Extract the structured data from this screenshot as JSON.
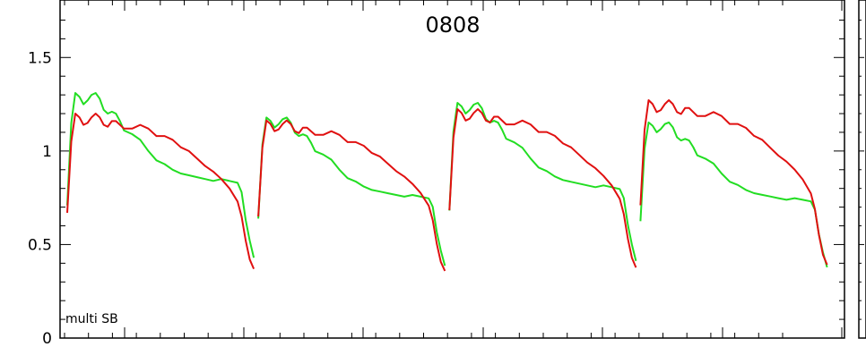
{
  "chart_data": {
    "type": "line",
    "title": "0808",
    "annotation": "multi SB",
    "xlim": [
      0,
      100
    ],
    "ylim": [
      0,
      1.75
    ],
    "y_ticks": [
      0,
      0.5,
      1,
      1.5
    ],
    "y_tick_labels": [
      "0",
      "0.5",
      "1",
      "1.5"
    ],
    "grid": false,
    "series": [
      {
        "color": "#e01010",
        "segments": [
          [
            [
              0,
              0.67
            ],
            [
              1,
              1.05
            ],
            [
              2,
              1.2
            ],
            [
              3,
              1.18
            ],
            [
              4,
              1.14
            ],
            [
              5,
              1.15
            ],
            [
              6,
              1.18
            ],
            [
              7,
              1.2
            ],
            [
              8,
              1.18
            ],
            [
              9,
              1.14
            ],
            [
              10,
              1.13
            ],
            [
              11,
              1.16
            ],
            [
              12,
              1.16
            ],
            [
              14,
              1.12
            ],
            [
              16,
              1.12
            ],
            [
              18,
              1.14
            ],
            [
              20,
              1.12
            ],
            [
              22,
              1.08
            ],
            [
              24,
              1.08
            ],
            [
              26,
              1.06
            ],
            [
              28,
              1.02
            ],
            [
              30,
              1.0
            ],
            [
              32,
              0.96
            ],
            [
              34,
              0.92
            ],
            [
              36,
              0.89
            ],
            [
              38,
              0.85
            ],
            [
              40,
              0.8
            ],
            [
              42,
              0.73
            ],
            [
              43,
              0.65
            ],
            [
              44,
              0.52
            ],
            [
              45,
              0.42
            ],
            [
              46,
              0.37
            ]
          ],
          [
            [
              47,
              0.58
            ],
            [
              48,
              0.9
            ],
            [
              49,
              1.08
            ],
            [
              50,
              1.14
            ],
            [
              51,
              1.15
            ],
            [
              53,
              1.15
            ],
            [
              55,
              1.14
            ],
            [
              57,
              1.11
            ],
            [
              59,
              1.12
            ],
            [
              61,
              1.1
            ],
            [
              63,
              1.12
            ],
            [
              65,
              1.14
            ],
            [
              67,
              1.13
            ],
            [
              69,
              1.1
            ],
            [
              71,
              1.12
            ],
            [
              73,
              1.1
            ],
            [
              75,
              1.06
            ],
            [
              77,
              1.06
            ],
            [
              79,
              1.03
            ],
            [
              81,
              0.99
            ],
            [
              83,
              0.99
            ],
            [
              85,
              0.95
            ],
            [
              87,
              0.92
            ],
            [
              89,
              0.89
            ],
            [
              91,
              0.86
            ],
            [
              93,
              0.86
            ],
            [
              94,
              0.8
            ],
            [
              95,
              0.62
            ],
            [
              96,
              0.49
            ]
          ],
          [
            [
              96,
              0.49
            ]
          ]
        ]
      },
      {
        "color": "#22dd22",
        "segments": [
          [
            [
              0,
              0.71
            ],
            [
              1,
              1.15
            ],
            [
              2,
              1.31
            ],
            [
              3,
              1.29
            ],
            [
              4,
              1.25
            ],
            [
              5,
              1.27
            ],
            [
              6,
              1.3
            ],
            [
              7,
              1.31
            ],
            [
              8,
              1.28
            ],
            [
              9,
              1.22
            ],
            [
              10,
              1.2
            ],
            [
              11,
              1.21
            ],
            [
              12,
              1.2
            ],
            [
              13,
              1.16
            ],
            [
              14,
              1.11
            ],
            [
              16,
              1.09
            ],
            [
              18,
              1.06
            ],
            [
              20,
              1.0
            ],
            [
              22,
              0.95
            ],
            [
              24,
              0.93
            ],
            [
              26,
              0.9
            ],
            [
              28,
              0.88
            ],
            [
              30,
              0.87
            ],
            [
              32,
              0.86
            ],
            [
              34,
              0.85
            ],
            [
              36,
              0.84
            ],
            [
              38,
              0.85
            ],
            [
              40,
              0.84
            ],
            [
              42,
              0.83
            ],
            [
              43,
              0.78
            ],
            [
              44,
              0.63
            ],
            [
              45,
              0.52
            ],
            [
              46,
              0.43
            ]
          ]
        ]
      }
    ]
  }
}
